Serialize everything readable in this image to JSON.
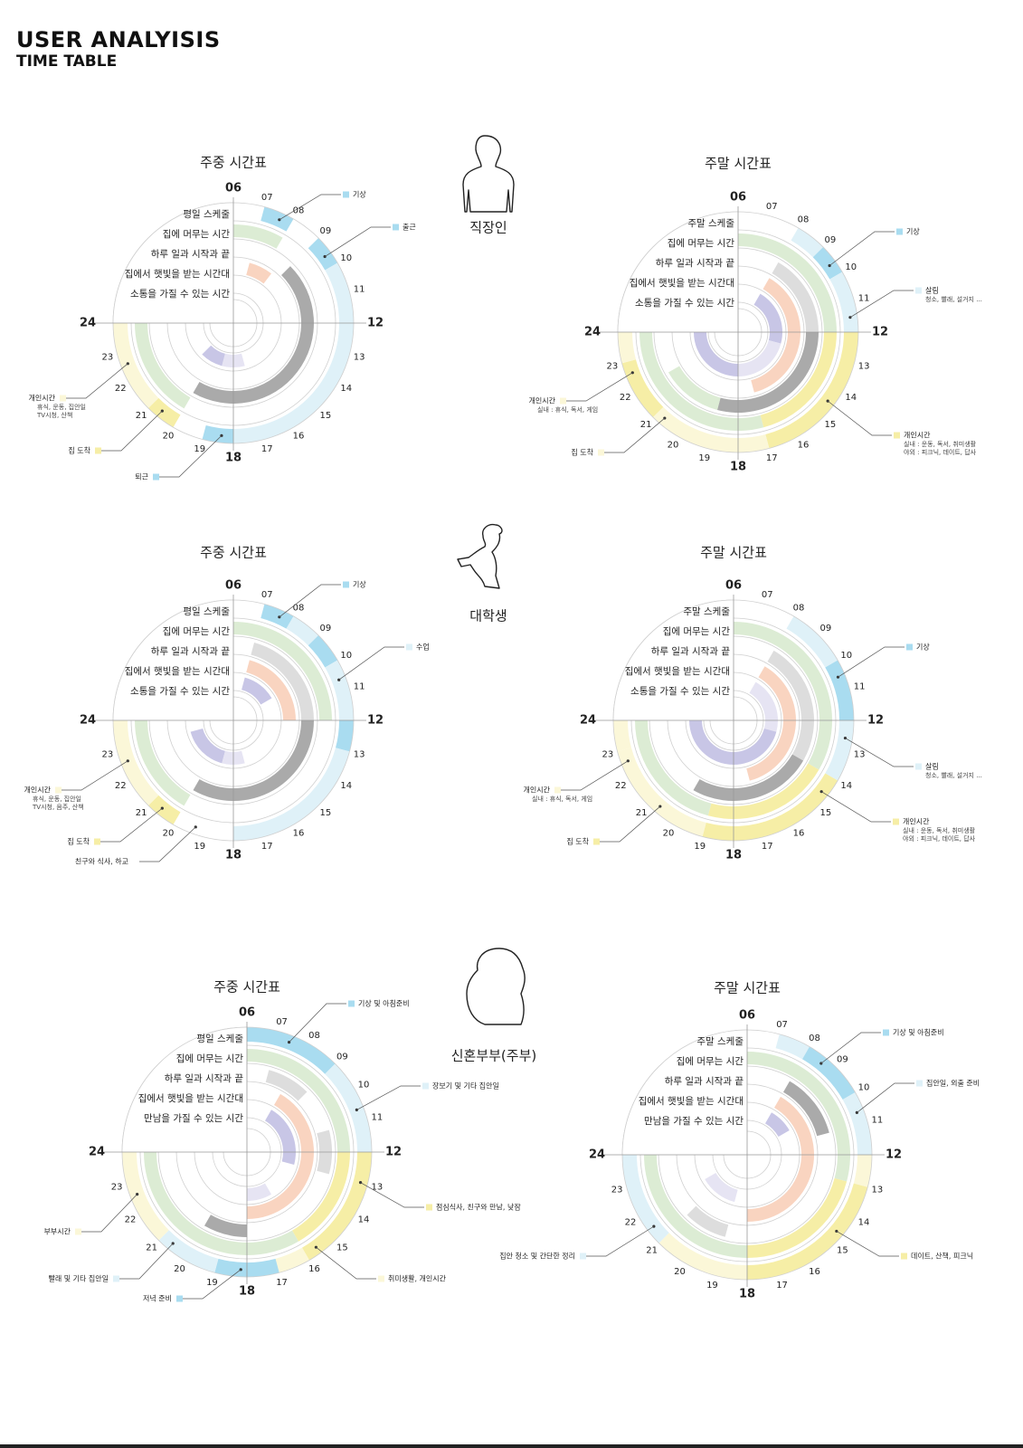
{
  "header": {
    "title": "USER ANALYISIS",
    "subtitle": "TIME TABLE"
  },
  "colors": {
    "blue": "#a9dcf0",
    "lightblue": "#dff1f8",
    "green": "#dcecd4",
    "yellow": "#f6eea6",
    "lightyellow": "#fbf7d8",
    "gray": "#aaaaaa",
    "lightgray": "#dddddd",
    "peach": "#f9d4c0",
    "lavender": "#c8c6e6",
    "lightlavender": "#e6e4f3"
  },
  "personas": [
    {
      "name": "직장인",
      "icon": "office-worker-silhouette-icon"
    },
    {
      "name": "대학생",
      "icon": "student-silhouette-icon"
    },
    {
      "name": "신혼부부(주부)",
      "icon": "housewife-silhouette-icon"
    }
  ],
  "hour_labels": [
    "06",
    "07",
    "08",
    "09",
    "10",
    "11",
    "12",
    "13",
    "14",
    "15",
    "16",
    "17",
    "18",
    "19",
    "20",
    "21",
    "22",
    "23",
    "24"
  ],
  "chart_data": [
    {
      "type": "radial-timetable",
      "persona": "직장인",
      "title": "주중 시간표",
      "rings": [
        "평일 스케줄",
        "집에 머무는 시간",
        "하루 일과 시작과 끝",
        "집에서 햇빛을 받는 시간대",
        "소통을 가질 수 있는 시간"
      ],
      "segments": [
        {
          "ring": 0,
          "from": 7,
          "to": 8,
          "color": "blue"
        },
        {
          "ring": 0,
          "from": 9,
          "to": 10,
          "color": "blue"
        },
        {
          "ring": 0,
          "from": 10,
          "to": 18,
          "color": "lightblue"
        },
        {
          "ring": 0,
          "from": 18,
          "to": 19,
          "color": "blue"
        },
        {
          "ring": 0,
          "from": 20,
          "to": 21,
          "color": "yellow"
        },
        {
          "ring": 0,
          "from": 21,
          "to": 24,
          "color": "lightyellow"
        },
        {
          "ring": 1,
          "from": 6,
          "to": 8,
          "color": "green"
        },
        {
          "ring": 1,
          "from": 20,
          "to": 24,
          "color": "green"
        },
        {
          "ring": 2,
          "from": 9,
          "to": 20,
          "color": "gray"
        },
        {
          "ring": 3,
          "from": 7,
          "to": 8.5,
          "color": "peach"
        },
        {
          "ring": 4,
          "from": 19,
          "to": 21,
          "color": "lavender"
        },
        {
          "ring": 4,
          "from": 17,
          "to": 19,
          "color": "lightlavender"
        }
      ],
      "callouts": [
        {
          "label": "기상",
          "color": "blue"
        },
        {
          "label": "출근",
          "color": "blue"
        },
        {
          "label": "개인시간",
          "sub": [
            "휴식, 운동, 집안일",
            "TV시청, 산책"
          ],
          "color": "lightyellow"
        },
        {
          "label": "집 도착",
          "color": "yellow"
        },
        {
          "label": "퇴근",
          "color": "blue"
        }
      ]
    },
    {
      "type": "radial-timetable",
      "persona": "직장인",
      "title": "주말 시간표",
      "rings": [
        "주말 스케줄",
        "집에 머무는 시간",
        "하루 일과 시작과 끝",
        "집에서 햇빛을 받는 시간대",
        "소통을 가질 수 있는 시간"
      ],
      "segments": [
        {
          "ring": 0,
          "from": 8,
          "to": 9,
          "color": "lightblue"
        },
        {
          "ring": 0,
          "from": 9,
          "to": 10,
          "color": "blue"
        },
        {
          "ring": 0,
          "from": 10,
          "to": 12,
          "color": "lightblue"
        },
        {
          "ring": 0,
          "from": 12,
          "to": 17,
          "color": "yellow"
        },
        {
          "ring": 0,
          "from": 17,
          "to": 21,
          "color": "lightyellow"
        },
        {
          "ring": 0,
          "from": 21,
          "to": 23,
          "color": "yellow"
        },
        {
          "ring": 0,
          "from": 23,
          "to": 24,
          "color": "lightyellow"
        },
        {
          "ring": 1,
          "from": 6,
          "to": 12,
          "color": "green"
        },
        {
          "ring": 1,
          "from": 12,
          "to": 17,
          "color": "yellow"
        },
        {
          "ring": 1,
          "from": 17,
          "to": 24,
          "color": "green"
        },
        {
          "ring": 2,
          "from": 8,
          "to": 12,
          "color": "lightgray"
        },
        {
          "ring": 2,
          "from": 12,
          "to": 19,
          "color": "gray"
        },
        {
          "ring": 2,
          "from": 19,
          "to": 22,
          "color": "green"
        },
        {
          "ring": 3,
          "from": 8,
          "to": 17,
          "color": "peach"
        },
        {
          "ring": 4,
          "from": 8,
          "to": 13,
          "color": "lavender"
        },
        {
          "ring": 4,
          "from": 13,
          "to": 18,
          "color": "lightlavender"
        },
        {
          "ring": 4,
          "from": 18,
          "to": 24,
          "color": "lavender"
        }
      ],
      "callouts": [
        {
          "label": "기상",
          "color": "blue"
        },
        {
          "label": "살림",
          "sub": [
            "청소, 빨래, 설거지 ..."
          ],
          "color": "lightblue"
        },
        {
          "label": "개인시간",
          "sub": [
            "실내 : 휴식, 독서, 게임"
          ],
          "color": "lightyellow"
        },
        {
          "label": "개인시간",
          "sub": [
            "실내 : 운동, 독서, 취미생활",
            "야외 : 피크닉, 데이트, 답사"
          ],
          "color": "yellow"
        },
        {
          "label": "집 도착",
          "color": "lightyellow"
        }
      ]
    },
    {
      "type": "radial-timetable",
      "persona": "대학생",
      "title": "주중 시간표",
      "rings": [
        "평일 스케줄",
        "집에 머무는 시간",
        "하루 일과 시작과 끝",
        "집에서 햇빛을 받는 시간대",
        "소통을 가질 수 있는 시간"
      ],
      "segments": [
        {
          "ring": 0,
          "from": 7,
          "to": 8,
          "color": "blue"
        },
        {
          "ring": 0,
          "from": 8,
          "to": 9,
          "color": "lightblue"
        },
        {
          "ring": 0,
          "from": 9,
          "to": 10,
          "color": "blue"
        },
        {
          "ring": 0,
          "from": 10,
          "to": 12,
          "color": "lightblue"
        },
        {
          "ring": 0,
          "from": 12,
          "to": 13,
          "color": "blue"
        },
        {
          "ring": 0,
          "from": 13,
          "to": 18,
          "color": "lightblue"
        },
        {
          "ring": 0,
          "from": 20,
          "to": 21,
          "color": "yellow"
        },
        {
          "ring": 0,
          "from": 21,
          "to": 24,
          "color": "lightyellow"
        },
        {
          "ring": 1,
          "from": 6,
          "to": 12,
          "color": "green"
        },
        {
          "ring": 1,
          "from": 20,
          "to": 24,
          "color": "green"
        },
        {
          "ring": 2,
          "from": 7,
          "to": 12,
          "color": "lightgray"
        },
        {
          "ring": 2,
          "from": 12,
          "to": 20,
          "color": "gray"
        },
        {
          "ring": 3,
          "from": 7,
          "to": 12,
          "color": "peach"
        },
        {
          "ring": 4,
          "from": 7,
          "to": 10,
          "color": "lavender"
        },
        {
          "ring": 4,
          "from": 19,
          "to": 23,
          "color": "lavender"
        },
        {
          "ring": 4,
          "from": 17,
          "to": 19,
          "color": "lightlavender"
        }
      ],
      "callouts": [
        {
          "label": "기상",
          "color": "blue"
        },
        {
          "label": "수업",
          "color": "lightblue"
        },
        {
          "label": "개인시간",
          "sub": [
            "휴식, 운동, 집안일",
            "TV시청, 음주, 산책"
          ],
          "color": "lightyellow"
        },
        {
          "label": "집 도착",
          "color": "yellow"
        },
        {
          "label": "친구와 식사, 하교",
          "color": "none"
        }
      ]
    },
    {
      "type": "radial-timetable",
      "persona": "대학생",
      "title": "주말 시간표",
      "rings": [
        "주말 스케줄",
        "집에 머무는 시간",
        "하루 일과 시작과 끝",
        "집에서 햇빛을 받는 시간대",
        "소통을 가질 수 있는 시간"
      ],
      "segments": [
        {
          "ring": 0,
          "from": 8,
          "to": 10,
          "color": "lightblue"
        },
        {
          "ring": 0,
          "from": 10,
          "to": 12,
          "color": "blue"
        },
        {
          "ring": 0,
          "from": 12,
          "to": 14,
          "color": "lightblue"
        },
        {
          "ring": 0,
          "from": 14,
          "to": 19,
          "color": "yellow"
        },
        {
          "ring": 0,
          "from": 19,
          "to": 23,
          "color": "lightyellow"
        },
        {
          "ring": 0,
          "from": 23,
          "to": 24,
          "color": "lightyellow"
        },
        {
          "ring": 1,
          "from": 6,
          "to": 14,
          "color": "green"
        },
        {
          "ring": 1,
          "from": 14,
          "to": 19,
          "color": "yellow"
        },
        {
          "ring": 1,
          "from": 19,
          "to": 24,
          "color": "green"
        },
        {
          "ring": 2,
          "from": 8,
          "to": 14,
          "color": "lightgray"
        },
        {
          "ring": 2,
          "from": 14,
          "to": 20,
          "color": "gray"
        },
        {
          "ring": 3,
          "from": 8,
          "to": 17,
          "color": "peach"
        },
        {
          "ring": 4,
          "from": 8,
          "to": 13,
          "color": "lightlavender"
        },
        {
          "ring": 4,
          "from": 13,
          "to": 18,
          "color": "lavender"
        },
        {
          "ring": 4,
          "from": 18,
          "to": 24,
          "color": "lavender"
        }
      ],
      "callouts": [
        {
          "label": "기상",
          "color": "blue"
        },
        {
          "label": "살림",
          "sub": [
            "청소, 빨래, 설거지 ..."
          ],
          "color": "lightblue"
        },
        {
          "label": "개인시간",
          "sub": [
            "실내 : 휴식, 독서, 게임"
          ],
          "color": "lightyellow"
        },
        {
          "label": "개인시간",
          "sub": [
            "실내 : 운동, 독서, 취미생활",
            "야외 : 피크닉, 데이트, 답사"
          ],
          "color": "yellow"
        },
        {
          "label": "집 도착",
          "color": "yellow"
        }
      ]
    },
    {
      "type": "radial-timetable",
      "persona": "신혼부부(주부)",
      "title": "주중 시간표",
      "rings": [
        "평일 스케줄",
        "집에 머무는 시간",
        "하루 일과 시작과 끝",
        "집에서 햇빛을 받는 시간대",
        "만남을 가질 수 있는 시간"
      ],
      "segments": [
        {
          "ring": 0,
          "from": 6,
          "to": 9,
          "color": "blue"
        },
        {
          "ring": 0,
          "from": 9,
          "to": 12,
          "color": "lightblue"
        },
        {
          "ring": 0,
          "from": 12,
          "to": 16,
          "color": "yellow"
        },
        {
          "ring": 0,
          "from": 16,
          "to": 17,
          "color": "lightyellow"
        },
        {
          "ring": 0,
          "from": 17,
          "to": 19,
          "color": "blue"
        },
        {
          "ring": 0,
          "from": 19,
          "to": 21,
          "color": "lightblue"
        },
        {
          "ring": 0,
          "from": 21,
          "to": 24,
          "color": "lightyellow"
        },
        {
          "ring": 1,
          "from": 6,
          "to": 12,
          "color": "green"
        },
        {
          "ring": 1,
          "from": 12,
          "to": 16,
          "color": "yellow"
        },
        {
          "ring": 1,
          "from": 16,
          "to": 24,
          "color": "green"
        },
        {
          "ring": 2,
          "from": 7,
          "to": 9,
          "color": "lightgray"
        },
        {
          "ring": 2,
          "from": 11,
          "to": 13,
          "color": "lightgray"
        },
        {
          "ring": 2,
          "from": 18,
          "to": 20,
          "color": "gray"
        },
        {
          "ring": 3,
          "from": 8,
          "to": 18,
          "color": "peach"
        },
        {
          "ring": 4,
          "from": 8,
          "to": 13,
          "color": "lavender"
        },
        {
          "ring": 4,
          "from": 16,
          "to": 18,
          "color": "lightlavender"
        }
      ],
      "callouts": [
        {
          "label": "기상 및 아침준비",
          "color": "blue"
        },
        {
          "label": "장보기 및 기타 집안일",
          "color": "lightblue"
        },
        {
          "label": "점심식사, 친구와 만남, 낮잠",
          "color": "yellow"
        },
        {
          "label": "부부시간",
          "color": "lightyellow"
        },
        {
          "label": "취미생활, 개인시간",
          "color": "lightyellow"
        },
        {
          "label": "빨래 및 기타 집안일",
          "color": "lightblue"
        },
        {
          "label": "저녁 준비",
          "color": "blue"
        }
      ]
    },
    {
      "type": "radial-timetable",
      "persona": "신혼부부(주부)",
      "title": "주말 시간표",
      "rings": [
        "주말 스케줄",
        "집에 머무는 시간",
        "하루 일과 시작과 끝",
        "집에서 햇빛을 받는 시간대",
        "만남을 가질 수 있는 시간"
      ],
      "segments": [
        {
          "ring": 0,
          "from": 7,
          "to": 8,
          "color": "lightblue"
        },
        {
          "ring": 0,
          "from": 8,
          "to": 10,
          "color": "blue"
        },
        {
          "ring": 0,
          "from": 10,
          "to": 12,
          "color": "lightblue"
        },
        {
          "ring": 0,
          "from": 12,
          "to": 13,
          "color": "lightyellow"
        },
        {
          "ring": 0,
          "from": 13,
          "to": 18,
          "color": "yellow"
        },
        {
          "ring": 0,
          "from": 18,
          "to": 21,
          "color": "lightyellow"
        },
        {
          "ring": 0,
          "from": 21,
          "to": 24,
          "color": "lightblue"
        },
        {
          "ring": 1,
          "from": 6,
          "to": 13,
          "color": "green"
        },
        {
          "ring": 1,
          "from": 13,
          "to": 18,
          "color": "yellow"
        },
        {
          "ring": 1,
          "from": 18,
          "to": 24,
          "color": "green"
        },
        {
          "ring": 2,
          "from": 8,
          "to": 11,
          "color": "gray"
        },
        {
          "ring": 2,
          "from": 19,
          "to": 21,
          "color": "lightgray"
        },
        {
          "ring": 3,
          "from": 8,
          "to": 18,
          "color": "peach"
        },
        {
          "ring": 4,
          "from": 8,
          "to": 10,
          "color": "lavender"
        },
        {
          "ring": 4,
          "from": 19,
          "to": 22,
          "color": "lightlavender"
        }
      ],
      "callouts": [
        {
          "label": "기상 및 아침준비",
          "color": "blue"
        },
        {
          "label": "집안일, 외출 준비",
          "color": "lightblue"
        },
        {
          "label": "데이트, 산책, 피크닉",
          "color": "yellow"
        },
        {
          "label": "집안 청소 및 간단한 정리",
          "color": "lightblue"
        }
      ]
    }
  ]
}
